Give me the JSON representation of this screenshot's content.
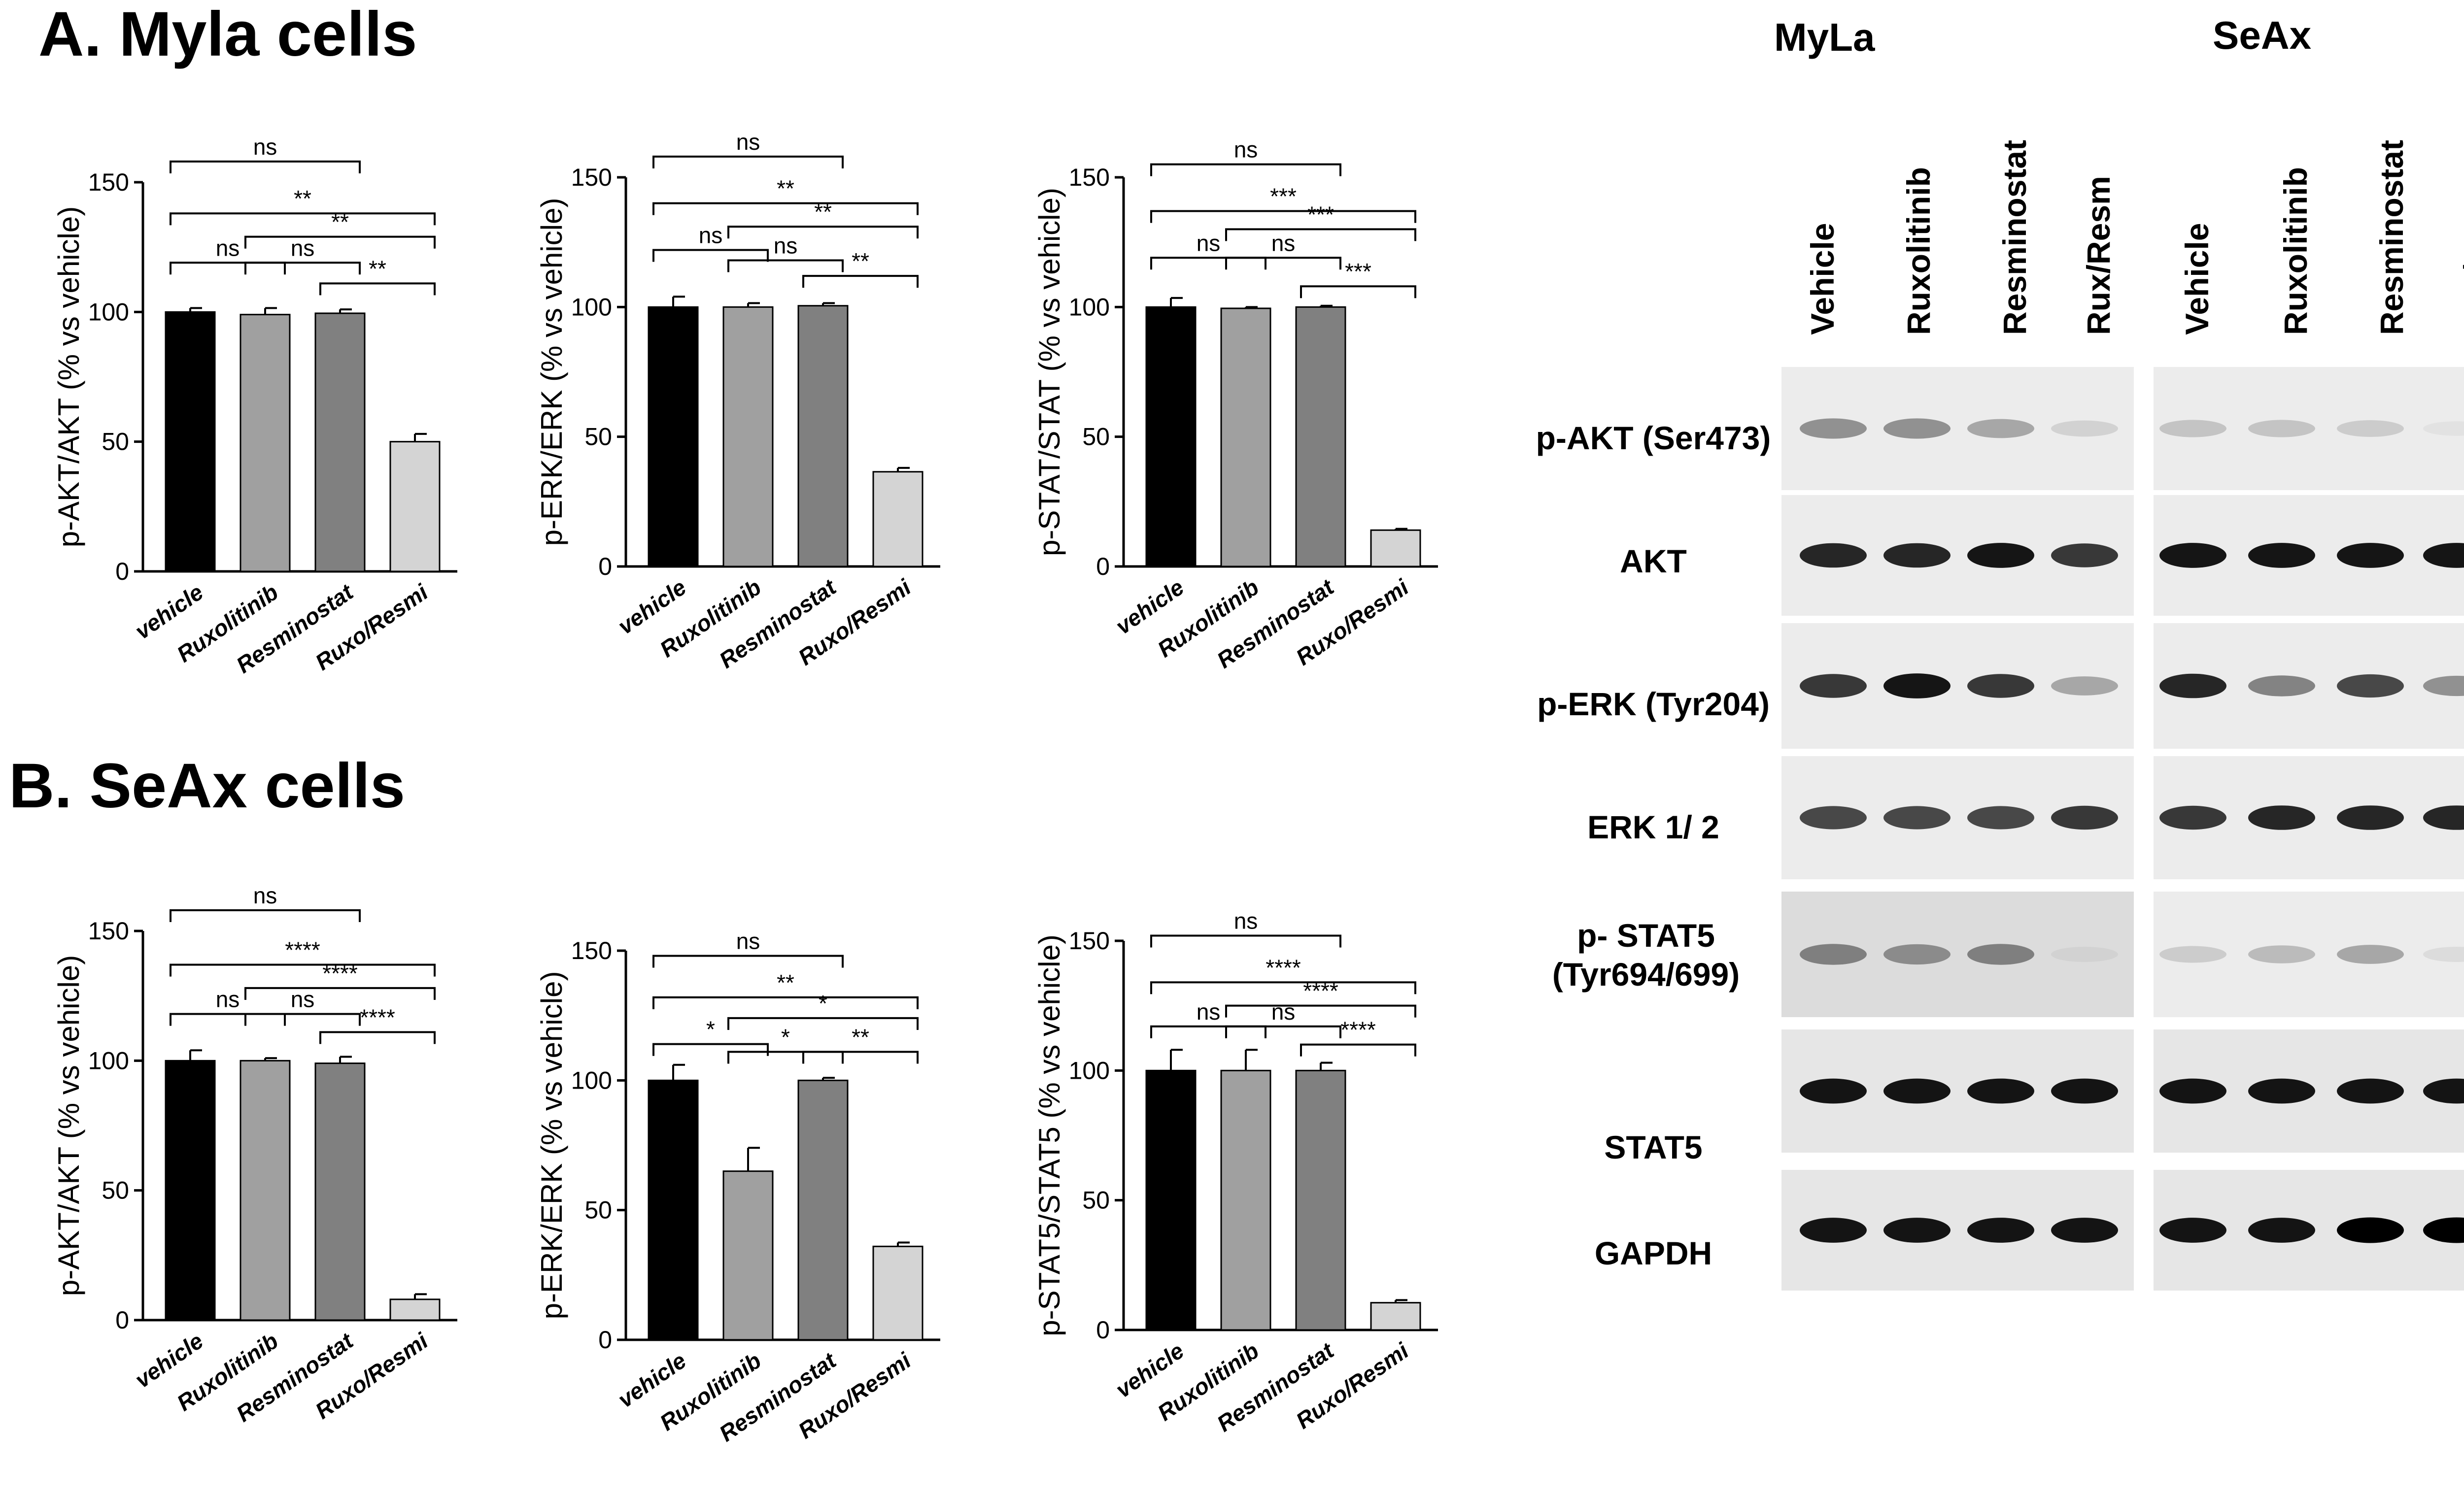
{
  "figure": {
    "panel_a_title": "A. Myla cells",
    "panel_b_title": "B. SeAx cells"
  },
  "chart_data": [
    {
      "id": "a1",
      "type": "bar",
      "panel": "A",
      "categories": [
        "vehicle",
        "Ruxolitinib",
        "Resminostat",
        "Ruxo/Resmi"
      ],
      "values": [
        100,
        99,
        99.5,
        50
      ],
      "errors": [
        1.5,
        2.5,
        1.5,
        3
      ],
      "colors": [
        "#000000",
        "#a0a0a0",
        "#808080",
        "#d4d4d4"
      ],
      "ylabel": "p-AKT/AKT  (% vs vehicle)",
      "ylim": [
        0,
        150
      ],
      "yticks": [
        0,
        50,
        100,
        150
      ],
      "annotations": [
        {
          "from": 0,
          "to": 2,
          "y": 158,
          "label": "ns"
        },
        {
          "from": 0,
          "to": 3,
          "y": 138,
          "label": "**"
        },
        {
          "from": 1,
          "to": 3,
          "y": 129,
          "label": "**"
        },
        {
          "from": 0,
          "to": 1,
          "y": 119,
          "label": "ns"
        },
        {
          "from": 1,
          "to": 2,
          "y": 119,
          "label": "ns"
        },
        {
          "from": 2,
          "to": 3,
          "y": 111,
          "label": "**"
        }
      ]
    },
    {
      "id": "a2",
      "type": "bar",
      "panel": "A",
      "categories": [
        "vehicle",
        "Ruxolitinib",
        "Resminostat",
        "Ruxo/Resmi"
      ],
      "values": [
        100,
        100,
        100.5,
        36.5
      ],
      "errors": [
        4,
        1.5,
        1,
        1.5
      ],
      "colors": [
        "#000000",
        "#a0a0a0",
        "#808080",
        "#d4d4d4"
      ],
      "ylabel": "p-ERK/ERK  (% vs vehicle)",
      "ylim": [
        0,
        150
      ],
      "yticks": [
        0,
        50,
        100,
        150
      ],
      "annotations": [
        {
          "from": 0,
          "to": 2,
          "y": 158,
          "label": "ns"
        },
        {
          "from": 0,
          "to": 3,
          "y": 140,
          "label": "**"
        },
        {
          "from": 1,
          "to": 3,
          "y": 131,
          "label": "**"
        },
        {
          "from": 0,
          "to": 1,
          "y": 122,
          "label": "ns"
        },
        {
          "from": 1,
          "to": 2,
          "y": 118,
          "label": "ns"
        },
        {
          "from": 2,
          "to": 3,
          "y": 112,
          "label": "**"
        }
      ]
    },
    {
      "id": "a3",
      "type": "bar",
      "panel": "A",
      "categories": [
        "vehicle",
        "Ruxolitinib",
        "Resminostat",
        "Ruxo/Resmi"
      ],
      "values": [
        100,
        99.5,
        100,
        14
      ],
      "errors": [
        3.5,
        0.5,
        0.5,
        0.5
      ],
      "colors": [
        "#000000",
        "#a0a0a0",
        "#808080",
        "#d4d4d4"
      ],
      "ylabel": "p-STAT/STAT  (% vs vehicle)",
      "ylim": [
        0,
        150
      ],
      "yticks": [
        0,
        50,
        100,
        150
      ],
      "annotations": [
        {
          "from": 0,
          "to": 2,
          "y": 155,
          "label": "ns"
        },
        {
          "from": 0,
          "to": 3,
          "y": 137,
          "label": "***"
        },
        {
          "from": 1,
          "to": 3,
          "y": 130,
          "label": "***"
        },
        {
          "from": 0,
          "to": 1,
          "y": 119,
          "label": "ns"
        },
        {
          "from": 1,
          "to": 2,
          "y": 119,
          "label": "ns"
        },
        {
          "from": 2,
          "to": 3,
          "y": 108,
          "label": "***"
        }
      ]
    },
    {
      "id": "b1",
      "type": "bar",
      "panel": "B",
      "categories": [
        "vehicle",
        "Ruxolitinib",
        "Resminostat",
        "Ruxo/Resmi"
      ],
      "values": [
        100,
        100,
        99,
        8
      ],
      "errors": [
        4,
        1,
        2.5,
        2
      ],
      "colors": [
        "#000000",
        "#a0a0a0",
        "#808080",
        "#d4d4d4"
      ],
      "ylabel": "p-AKT/AKT  (% vs vehicle)",
      "ylim": [
        0,
        150
      ],
      "yticks": [
        0,
        50,
        100,
        150
      ],
      "annotations": [
        {
          "from": 0,
          "to": 2,
          "y": 158,
          "label": "ns"
        },
        {
          "from": 0,
          "to": 3,
          "y": 137,
          "label": "****"
        },
        {
          "from": 1,
          "to": 3,
          "y": 128,
          "label": "****"
        },
        {
          "from": 0,
          "to": 1,
          "y": 118,
          "label": "ns"
        },
        {
          "from": 1,
          "to": 2,
          "y": 118,
          "label": "ns"
        },
        {
          "from": 2,
          "to": 3,
          "y": 111,
          "label": "****"
        }
      ]
    },
    {
      "id": "b2",
      "type": "bar",
      "panel": "B",
      "categories": [
        "vehicle",
        "Ruxolitinib",
        "Resminostat",
        "Ruxo/Resmi"
      ],
      "values": [
        100,
        65,
        100,
        36
      ],
      "errors": [
        6,
        9,
        1,
        1.5
      ],
      "colors": [
        "#000000",
        "#a0a0a0",
        "#808080",
        "#d4d4d4"
      ],
      "ylabel": "p-ERK/ERK  (% vs vehicle)",
      "ylim": [
        0,
        150
      ],
      "yticks": [
        0,
        50,
        100,
        150
      ],
      "annotations": [
        {
          "from": 0,
          "to": 2,
          "y": 148,
          "label": "ns"
        },
        {
          "from": 0,
          "to": 3,
          "y": 132,
          "label": "**"
        },
        {
          "from": 1,
          "to": 3,
          "y": 124,
          "label": "*"
        },
        {
          "from": 0,
          "to": 1,
          "y": 114,
          "label": "*"
        },
        {
          "from": 1,
          "to": 2,
          "y": 111,
          "label": "*"
        },
        {
          "from": 2,
          "to": 3,
          "y": 111,
          "label": "**"
        }
      ]
    },
    {
      "id": "b3",
      "type": "bar",
      "panel": "B",
      "categories": [
        "vehicle",
        "Ruxolitinib",
        "Resminostat",
        "Ruxo/Resmi"
      ],
      "values": [
        100,
        100,
        100,
        10.5
      ],
      "errors": [
        8,
        8,
        3,
        1
      ],
      "colors": [
        "#000000",
        "#a0a0a0",
        "#808080",
        "#d4d4d4"
      ],
      "ylabel": "p-STAT5/STAT5  (% vs vehicle)",
      "ylim": [
        0,
        150
      ],
      "yticks": [
        0,
        50,
        100,
        150
      ],
      "annotations": [
        {
          "from": 0,
          "to": 2,
          "y": 152,
          "label": "ns"
        },
        {
          "from": 0,
          "to": 3,
          "y": 134,
          "label": "****"
        },
        {
          "from": 1,
          "to": 3,
          "y": 125,
          "label": "****"
        },
        {
          "from": 0,
          "to": 1,
          "y": 117,
          "label": "ns"
        },
        {
          "from": 1,
          "to": 2,
          "y": 117,
          "label": "ns"
        },
        {
          "from": 2,
          "to": 3,
          "y": 110,
          "label": "****"
        }
      ]
    }
  ],
  "blot": {
    "groups": [
      "MyLa",
      "SeAx"
    ],
    "columns": [
      "Vehicle",
      "Ruxolitinib",
      "Resminostat",
      "Rux/Resm"
    ],
    "rows": [
      {
        "label": "p-AKT (Ser473)",
        "band_intensity": {
          "MyLa": [
            0.55,
            0.55,
            0.45,
            0.2
          ],
          "SeAx": [
            0.3,
            0.3,
            0.25,
            0.06
          ]
        }
      },
      {
        "label": "AKT",
        "band_intensity": {
          "MyLa": [
            0.9,
            0.9,
            0.95,
            0.85
          ],
          "SeAx": [
            0.95,
            0.95,
            0.95,
            0.95
          ]
        }
      },
      {
        "label": "p-ERK (Tyr204)",
        "band_intensity": {
          "MyLa": [
            0.85,
            0.95,
            0.85,
            0.45
          ],
          "SeAx": [
            0.9,
            0.6,
            0.8,
            0.55
          ]
        }
      },
      {
        "label": "ERK 1/ 2",
        "band_intensity": {
          "MyLa": [
            0.8,
            0.8,
            0.8,
            0.85
          ],
          "SeAx": [
            0.85,
            0.9,
            0.9,
            0.9
          ]
        }
      },
      {
        "label": "p- STAT5 (Tyr694/699)",
        "band_intensity": {
          "MyLa": [
            0.6,
            0.55,
            0.6,
            0.12
          ],
          "SeAx": [
            0.25,
            0.35,
            0.45,
            0.12
          ]
        }
      },
      {
        "label": "STAT5",
        "band_intensity": {
          "MyLa": [
            0.95,
            0.95,
            0.95,
            0.95
          ],
          "SeAx": [
            0.95,
            0.95,
            0.95,
            0.95
          ]
        }
      },
      {
        "label": "GAPDH",
        "band_intensity": {
          "MyLa": [
            0.95,
            0.95,
            0.95,
            0.95
          ],
          "SeAx": [
            0.95,
            0.95,
            1,
            1
          ]
        }
      }
    ]
  }
}
